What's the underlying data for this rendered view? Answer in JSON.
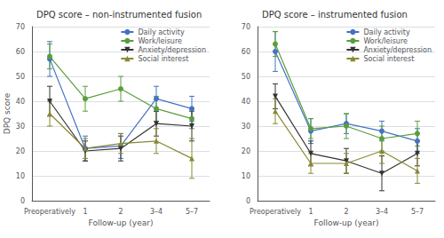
{
  "chart_data": [
    {
      "type": "line",
      "title": "DPQ score – non-instrumented fusion",
      "xlabel": "Follow-up (year)",
      "ylabel": "DPQ score",
      "categories": [
        "Preoperatively",
        "1",
        "2",
        "3–4",
        "5–7"
      ],
      "ylim": [
        0,
        70
      ],
      "yticks": [
        0,
        10,
        20,
        30,
        40,
        50,
        60,
        70
      ],
      "grid": true,
      "legend": "upper right",
      "series": [
        {
          "name": "Daily activity",
          "color": "#4472C4",
          "marker": "circle",
          "values": [
            57,
            21,
            22,
            41,
            37
          ],
          "errors": [
            7,
            5,
            5,
            5,
            5
          ]
        },
        {
          "name": "Work/leisure",
          "color": "#5A9E3A",
          "marker": "circle",
          "values": [
            58,
            41,
            45,
            37,
            33
          ],
          "errors": [
            5,
            5,
            5,
            5,
            4
          ]
        },
        {
          "name": "Anxiety/depression",
          "color": "#333333",
          "marker": "triangle-down",
          "values": [
            40,
            20,
            21,
            31,
            30
          ],
          "errors": [
            6,
            4,
            5,
            5,
            6
          ]
        },
        {
          "name": "Social interest",
          "color": "#888833",
          "marker": "triangle-up",
          "values": [
            35,
            21,
            23,
            24,
            17
          ],
          "errors": [
            5,
            4,
            4,
            5,
            8
          ]
        }
      ]
    },
    {
      "type": "line",
      "title": "DPQ score – instrumented fusion",
      "xlabel": "Follow-up (year)",
      "categories": [
        "Preoperatively",
        "1",
        "2",
        "3–4",
        "5–7"
      ],
      "ylim": [
        0,
        70
      ],
      "yticks": [
        0,
        10,
        20,
        30,
        40,
        50,
        60,
        70
      ],
      "grid": true,
      "legend": "upper right",
      "series": [
        {
          "name": "Daily activity",
          "color": "#4472C4",
          "marker": "circle",
          "values": [
            60,
            28,
            31,
            28,
            24
          ],
          "errors": [
            8,
            5,
            4,
            4,
            5
          ]
        },
        {
          "name": "Work/leisure",
          "color": "#5A9E3A",
          "marker": "circle",
          "values": [
            63,
            29,
            30,
            25,
            27
          ],
          "errors": [
            5,
            4,
            5,
            5,
            5
          ]
        },
        {
          "name": "Anxiety/depression",
          "color": "#333333",
          "marker": "triangle-down",
          "values": [
            42,
            19,
            16,
            11,
            19
          ],
          "errors": [
            5,
            5,
            5,
            7,
            5
          ]
        },
        {
          "name": "Social interest",
          "color": "#888833",
          "marker": "triangle-up",
          "values": [
            36,
            15,
            15,
            20,
            12
          ],
          "errors": [
            5,
            4,
            4,
            5,
            5
          ]
        }
      ]
    }
  ]
}
